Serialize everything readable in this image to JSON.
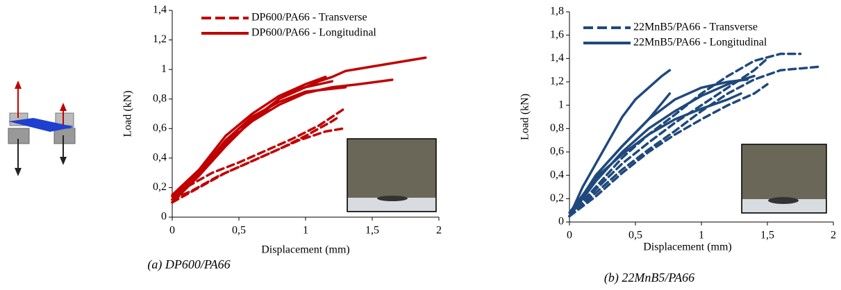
{
  "chart_data": [
    {
      "type": "line",
      "caption": "(a) DP600/PA66",
      "xlabel": "Displacement (mm)",
      "ylabel": "Load (kN)",
      "xlim": [
        0,
        2
      ],
      "ylim": [
        0,
        1.4
      ],
      "xticks": [
        0,
        {
          "value": 0.5,
          "label": "0,5"
        },
        1,
        {
          "value": 1.5,
          "label": "1,5"
        },
        2
      ],
      "yticks": [
        0,
        {
          "value": 0.2,
          "label": "0,2"
        },
        {
          "value": 0.4,
          "label": "0,4"
        },
        {
          "value": 0.6,
          "label": "0,6"
        },
        {
          "value": 0.8,
          "label": "0,8"
        },
        1,
        {
          "value": 1.2,
          "label": "1,2"
        },
        {
          "value": 1.4,
          "label": "1,4"
        }
      ],
      "series": [
        {
          "name": "DP600/PA66 - Transverse",
          "color": "#c00000",
          "dashed": true,
          "curves": [
            {
              "x": [
                0,
                0.1,
                0.3,
                0.5,
                0.7,
                0.9,
                1.1,
                1.3
              ],
              "values": [
                0.1,
                0.2,
                0.3,
                0.37,
                0.45,
                0.53,
                0.62,
                0.74
              ]
            },
            {
              "x": [
                0,
                0.15,
                0.35,
                0.55,
                0.75,
                0.95,
                1.15,
                1.28
              ],
              "values": [
                0.12,
                0.18,
                0.28,
                0.36,
                0.44,
                0.52,
                0.58,
                0.6
              ]
            },
            {
              "x": [
                0,
                0.2,
                0.4,
                0.6,
                0.8,
                1.0,
                1.2,
                1.25
              ],
              "values": [
                0.1,
                0.2,
                0.3,
                0.38,
                0.46,
                0.55,
                0.65,
                0.68
              ]
            }
          ]
        },
        {
          "name": "DP600/PA66 - Longitudinal",
          "color": "#c00000",
          "dashed": false,
          "curves": [
            {
              "x": [
                0,
                0.1,
                0.2,
                0.3,
                0.4,
                0.5,
                0.6,
                0.7,
                0.8,
                0.9,
                1.0,
                1.1,
                1.2,
                1.3,
                1.5,
                1.7,
                1.9
              ],
              "values": [
                0.1,
                0.2,
                0.3,
                0.4,
                0.5,
                0.6,
                0.66,
                0.72,
                0.8,
                0.85,
                0.88,
                0.92,
                0.95,
                0.99,
                1.02,
                1.05,
                1.08
              ]
            },
            {
              "x": [
                0,
                0.2,
                0.4,
                0.6,
                0.8,
                1.0,
                1.2,
                1.4,
                1.65
              ],
              "values": [
                0.12,
                0.3,
                0.5,
                0.65,
                0.76,
                0.84,
                0.88,
                0.9,
                0.93
              ]
            },
            {
              "x": [
                0,
                0.2,
                0.4,
                0.6,
                0.8,
                1.0,
                1.2
              ],
              "values": [
                0.1,
                0.28,
                0.48,
                0.66,
                0.8,
                0.88,
                0.92
              ]
            },
            {
              "x": [
                0,
                0.2,
                0.4,
                0.6,
                0.8,
                1.0,
                1.15
              ],
              "values": [
                0.15,
                0.32,
                0.55,
                0.7,
                0.82,
                0.9,
                0.95
              ]
            },
            {
              "x": [
                0,
                0.2,
                0.4,
                0.6,
                0.8,
                1.0,
                1.3
              ],
              "values": [
                0.14,
                0.3,
                0.52,
                0.68,
                0.78,
                0.85,
                0.88
              ]
            }
          ]
        }
      ]
    },
    {
      "type": "line",
      "caption": "(b) 22MnB5/PA66",
      "xlabel": "Displacement (mm)",
      "ylabel": "Load (kN)",
      "xlim": [
        0,
        2
      ],
      "ylim": [
        0,
        1.8
      ],
      "xticks": [
        0,
        {
          "value": 0.5,
          "label": "0,5"
        },
        1,
        {
          "value": 1.5,
          "label": "1,5"
        },
        2
      ],
      "yticks": [
        0,
        {
          "value": 0.2,
          "label": "0,2"
        },
        {
          "value": 0.4,
          "label": "0,4"
        },
        {
          "value": 0.6,
          "label": "0,6"
        },
        {
          "value": 0.8,
          "label": "0,8"
        },
        1,
        {
          "value": 1.2,
          "label": "1,2"
        },
        {
          "value": 1.4,
          "label": "1,4"
        },
        {
          "value": 1.6,
          "label": "1,6"
        },
        {
          "value": 1.8,
          "label": "1,8"
        }
      ],
      "series": [
        {
          "name": "22MnB5/PA66 - Transverse",
          "color": "#1f497d",
          "dashed": true,
          "curves": [
            {
              "x": [
                0,
                0.2,
                0.4,
                0.6,
                0.8,
                1.0,
                1.2,
                1.4,
                1.6,
                1.75
              ],
              "values": [
                0.05,
                0.3,
                0.55,
                0.75,
                0.92,
                1.1,
                1.25,
                1.38,
                1.44,
                1.44
              ]
            },
            {
              "x": [
                0,
                0.2,
                0.4,
                0.6,
                0.8,
                1.0,
                1.2,
                1.4,
                1.6,
                1.9
              ],
              "values": [
                0.05,
                0.25,
                0.45,
                0.62,
                0.78,
                0.95,
                1.1,
                1.22,
                1.3,
                1.33
              ]
            },
            {
              "x": [
                0,
                0.2,
                0.4,
                0.6,
                0.8,
                1.0,
                1.2,
                1.4,
                1.5
              ],
              "values": [
                0.05,
                0.28,
                0.5,
                0.68,
                0.85,
                1.0,
                1.15,
                1.3,
                1.4
              ]
            },
            {
              "x": [
                0,
                0.2,
                0.4,
                0.6,
                0.8,
                1.0,
                1.2,
                1.4,
                1.5
              ],
              "values": [
                0.05,
                0.22,
                0.42,
                0.6,
                0.75,
                0.88,
                1.0,
                1.1,
                1.18
              ]
            }
          ]
        },
        {
          "name": "22MnB5/PA66 - Longitudinal",
          "color": "#1f497d",
          "dashed": false,
          "curves": [
            {
              "x": [
                0,
                0.1,
                0.2,
                0.3,
                0.4,
                0.5,
                0.6,
                0.7,
                0.76
              ],
              "values": [
                0.05,
                0.3,
                0.5,
                0.7,
                0.9,
                1.05,
                1.15,
                1.25,
                1.3
              ]
            },
            {
              "x": [
                0,
                0.2,
                0.4,
                0.6,
                0.76
              ],
              "values": [
                0.05,
                0.4,
                0.65,
                0.88,
                1.1
              ]
            },
            {
              "x": [
                0,
                0.2,
                0.4,
                0.6,
                0.8,
                1.0,
                1.2,
                1.4
              ],
              "values": [
                0.05,
                0.35,
                0.6,
                0.8,
                0.95,
                1.08,
                1.18,
                1.25
              ]
            },
            {
              "x": [
                0,
                0.2,
                0.4,
                0.6,
                0.8,
                1.0,
                1.2,
                1.35
              ],
              "values": [
                0.05,
                0.4,
                0.65,
                0.88,
                1.05,
                1.15,
                1.2,
                1.22
              ]
            },
            {
              "x": [
                0,
                0.2,
                0.4,
                0.6,
                0.8,
                1.0,
                1.2,
                1.3
              ],
              "values": [
                0.08,
                0.38,
                0.58,
                0.75,
                0.88,
                0.97,
                1.05,
                1.1
              ]
            }
          ]
        }
      ]
    }
  ]
}
